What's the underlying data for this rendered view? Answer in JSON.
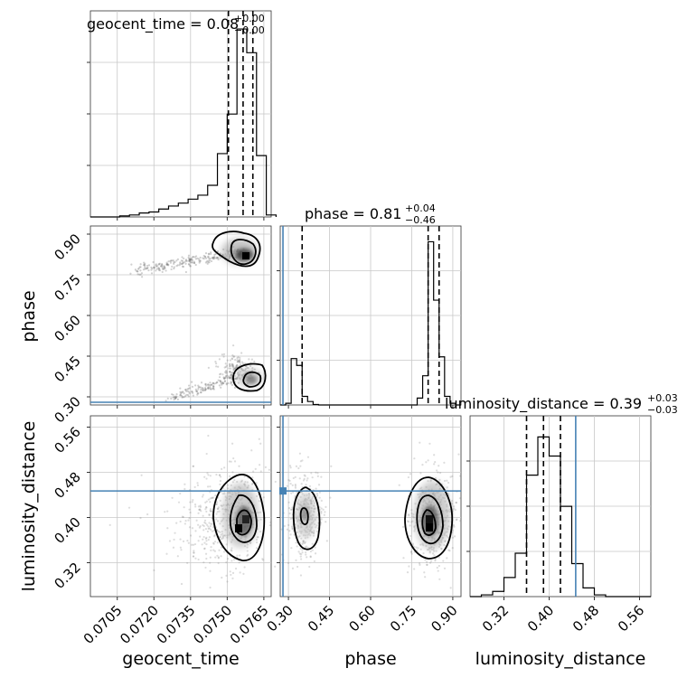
{
  "chart_data": {
    "type": "corner",
    "parameters": [
      "geocent_time",
      "phase",
      "luminosity_distance"
    ],
    "truth": {
      "phase": 0.28,
      "luminosity_distance": 0.447
    },
    "truth_color": "#4682b4",
    "titles": [
      {
        "param": "geocent_time",
        "text": "geocent_time = 0.08",
        "plus": "+0.00",
        "minus": "−0.00"
      },
      {
        "param": "phase",
        "text": "phase = 0.81",
        "plus": "+0.04",
        "minus": "−0.46"
      },
      {
        "param": "luminosity_distance",
        "text": "luminosity_distance = 0.39",
        "plus": "+0.03",
        "minus": "−0.03"
      }
    ],
    "axis_labels": {
      "x": [
        "geocent_time",
        "phase",
        "luminosity_distance"
      ],
      "y_phase": "phase",
      "y_luminosity_distance": "luminosity_distance"
    },
    "ticks": {
      "geocent_time": [
        "0.0705",
        "0.0720",
        "0.0735",
        "0.0750",
        "0.0765"
      ],
      "phase": [
        "0.30",
        "0.45",
        "0.60",
        "0.75",
        "0.90"
      ],
      "luminosity_distance": [
        "0.32",
        "0.40",
        "0.48",
        "0.56"
      ]
    },
    "ranges": {
      "geocent_time": [
        0.0694,
        0.0768
      ],
      "phase": [
        0.27,
        0.93
      ],
      "luminosity_distance": [
        0.26,
        0.58
      ]
    },
    "hist_geocent_time": {
      "edges": [
        0.0694,
        0.0698,
        0.0702,
        0.0706,
        0.071,
        0.0714,
        0.0718,
        0.0722,
        0.0726,
        0.073,
        0.0734,
        0.0738,
        0.0742,
        0.0746,
        0.075,
        0.0754,
        0.0758,
        0.0762,
        0.0766,
        0.077
      ],
      "counts": [
        0,
        0,
        0,
        0.005,
        0.01,
        0.02,
        0.025,
        0.04,
        0.055,
        0.07,
        0.09,
        0.11,
        0.16,
        0.32,
        0.52,
        0.95,
        0.83,
        0.31,
        0.01
      ],
      "quantiles": [
        0.07505,
        0.07565,
        0.07605
      ]
    },
    "hist_phase": {
      "edges": [
        0.27,
        0.29,
        0.31,
        0.33,
        0.35,
        0.37,
        0.39,
        0.41,
        0.43,
        0.45,
        0.47,
        0.49,
        0.51,
        0.53,
        0.55,
        0.57,
        0.59,
        0.61,
        0.63,
        0.65,
        0.67,
        0.69,
        0.71,
        0.73,
        0.75,
        0.77,
        0.79,
        0.81,
        0.83,
        0.85,
        0.87,
        0.89,
        0.91,
        0.93
      ],
      "counts": [
        0,
        0.01,
        0.27,
        0.23,
        0.05,
        0.02,
        0.003,
        0,
        0,
        0,
        0,
        0,
        0,
        0,
        0,
        0,
        0,
        0,
        0,
        0,
        0,
        0,
        0,
        0,
        0,
        0.04,
        0.17,
        0.95,
        0.61,
        0.28,
        0.05,
        0.01,
        0
      ],
      "quantiles": [
        0.35,
        0.81,
        0.85
      ]
    },
    "hist_luminosity_distance": {
      "edges": [
        0.26,
        0.28,
        0.3,
        0.32,
        0.34,
        0.36,
        0.38,
        0.4,
        0.42,
        0.44,
        0.46,
        0.48,
        0.5,
        0.52,
        0.54,
        0.56,
        0.58
      ],
      "counts": [
        0,
        0.01,
        0.03,
        0.11,
        0.25,
        0.7,
        0.92,
        0.81,
        0.52,
        0.19,
        0.05,
        0.01,
        0,
        0,
        0,
        0
      ],
      "quantiles": [
        0.36,
        0.39,
        0.42
      ]
    }
  }
}
